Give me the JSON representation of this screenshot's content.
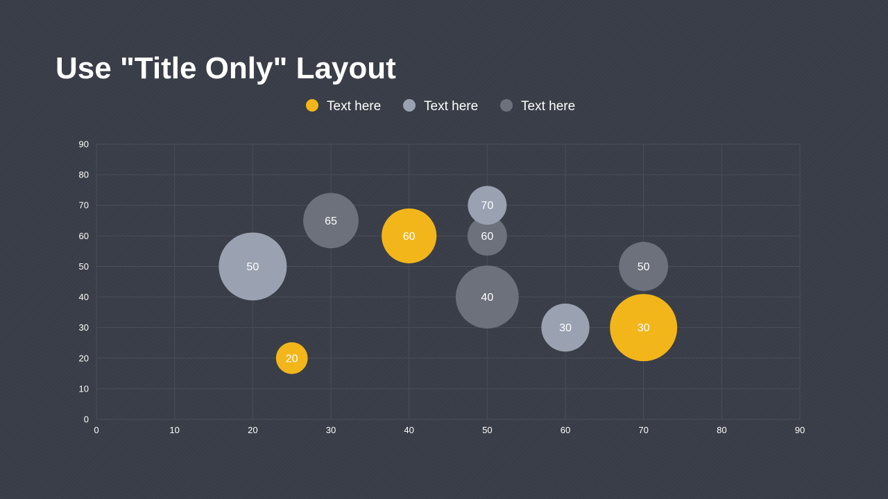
{
  "slide": {
    "title": "Use \"Title Only\" Layout"
  },
  "chart_data": {
    "type": "bubble",
    "xlim": [
      0,
      90
    ],
    "ylim": [
      0,
      90
    ],
    "x_ticks": [
      0,
      10,
      20,
      30,
      40,
      50,
      60,
      70,
      80,
      90
    ],
    "y_ticks": [
      0,
      10,
      20,
      30,
      40,
      50,
      60,
      70,
      80,
      90
    ],
    "grid": true,
    "legend_position": "top-center",
    "series": [
      {
        "name": "Text here",
        "color": "#f2b61b",
        "points": [
          {
            "x": 25,
            "y": 20,
            "size": 20,
            "label": "20"
          },
          {
            "x": 40,
            "y": 60,
            "size": 60,
            "label": "60"
          },
          {
            "x": 70,
            "y": 30,
            "size": 90,
            "label": "30"
          }
        ]
      },
      {
        "name": "Text here",
        "color": "#9aa2b1",
        "points": [
          {
            "x": 20,
            "y": 50,
            "size": 92,
            "label": "50"
          },
          {
            "x": 50,
            "y": 70,
            "size": 30,
            "label": "70"
          },
          {
            "x": 60,
            "y": 30,
            "size": 46,
            "label": "30"
          }
        ]
      },
      {
        "name": "Text here",
        "color": "#6d717c",
        "points": [
          {
            "x": 30,
            "y": 65,
            "size": 61,
            "label": "65"
          },
          {
            "x": 50,
            "y": 60,
            "size": 31,
            "label": "60"
          },
          {
            "x": 50,
            "y": 40,
            "size": 79,
            "label": "40"
          },
          {
            "x": 70,
            "y": 50,
            "size": 48,
            "label": "50"
          }
        ]
      }
    ]
  }
}
